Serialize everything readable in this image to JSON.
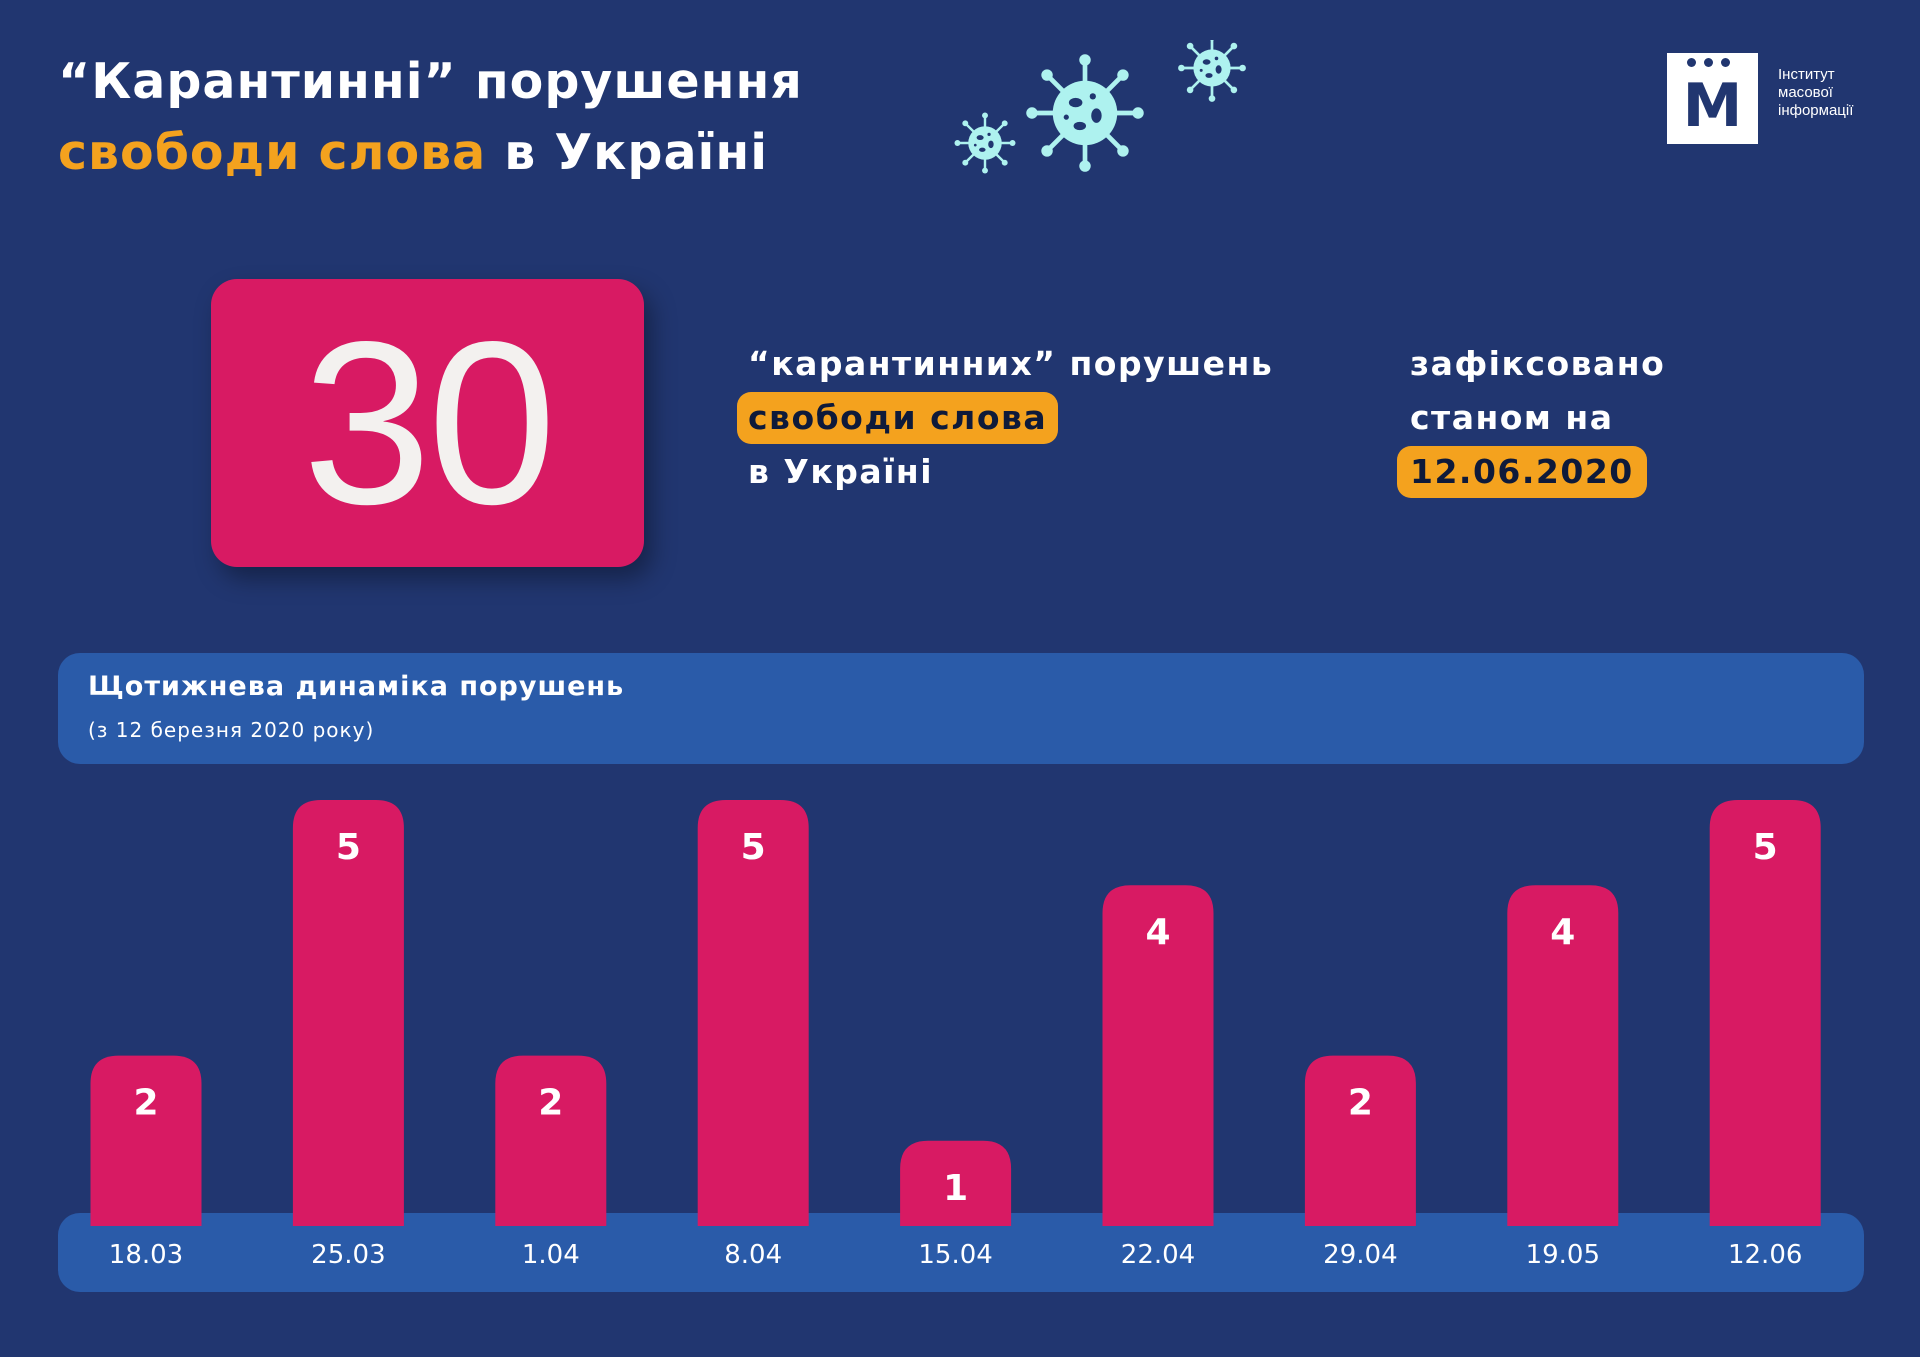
{
  "header": {
    "title_line1": "“Карантинні” порушення",
    "title_accent": "свободи слова",
    "title_rest": " в Україні"
  },
  "logo": {
    "mark": "М",
    "lines": [
      "Інститут",
      "масової",
      "інформації"
    ]
  },
  "summary": {
    "total": "30",
    "line1": "“карантинних” порушень",
    "highlight": "свободи слова",
    "line3": "в Україні",
    "status_line1": "зафіксовано",
    "status_line2": "станом на",
    "date": "12.06.2020"
  },
  "colors": {
    "background": "#213670",
    "bar": "#d81a63",
    "accent": "#f4a21e",
    "panel": "#2a5ba9",
    "virus": "#aef2ef"
  },
  "icons": [
    "virus-icon",
    "virus-icon",
    "virus-icon"
  ],
  "chart_data": {
    "type": "bar",
    "title": "Щотижнева динаміка порушень",
    "subtitle": "(з 12 березня 2020 року)",
    "categories": [
      "18.03",
      "25.03",
      "1.04",
      "8.04",
      "15.04",
      "22.04",
      "29.04",
      "19.05",
      "12.06"
    ],
    "values": [
      2,
      5,
      2,
      5,
      1,
      4,
      2,
      4,
      5
    ],
    "data_labels": [
      "2",
      "5",
      "2",
      "5",
      "1",
      "4",
      "2",
      "4",
      "5"
    ],
    "ylim": [
      0,
      5
    ],
    "grid": false
  }
}
